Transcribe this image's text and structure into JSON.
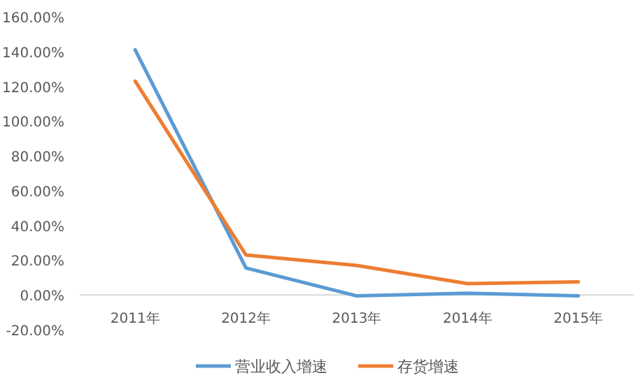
{
  "chart_data": {
    "type": "line",
    "categories": [
      "2011年",
      "2012年",
      "2013年",
      "2014年",
      "2015年"
    ],
    "series": [
      {
        "name": "营业收入增速",
        "color": "#5b9bd5",
        "values": [
          141,
          15.5,
          -0.5,
          1,
          -0.5
        ]
      },
      {
        "name": "存货增速",
        "color": "#ed7d31",
        "values": [
          123,
          23,
          17,
          6.5,
          7.5
        ]
      }
    ],
    "ylim": [
      -20,
      160
    ],
    "yticks": [
      {
        "value": -20,
        "label": "-20.00%"
      },
      {
        "value": 0,
        "label": "0.00%"
      },
      {
        "value": 20,
        "label": "20.00%"
      },
      {
        "value": 40,
        "label": "40.00%"
      },
      {
        "value": 60,
        "label": "60.00%"
      },
      {
        "value": 80,
        "label": "80.00%"
      },
      {
        "value": 100,
        "label": "100.00%"
      },
      {
        "value": 120,
        "label": "120.00%"
      },
      {
        "value": 140,
        "label": "140.00%"
      },
      {
        "value": 160,
        "label": "160.00%"
      }
    ],
    "grid": false,
    "legend": "bottom",
    "marker": "none",
    "line_style": "solid"
  }
}
